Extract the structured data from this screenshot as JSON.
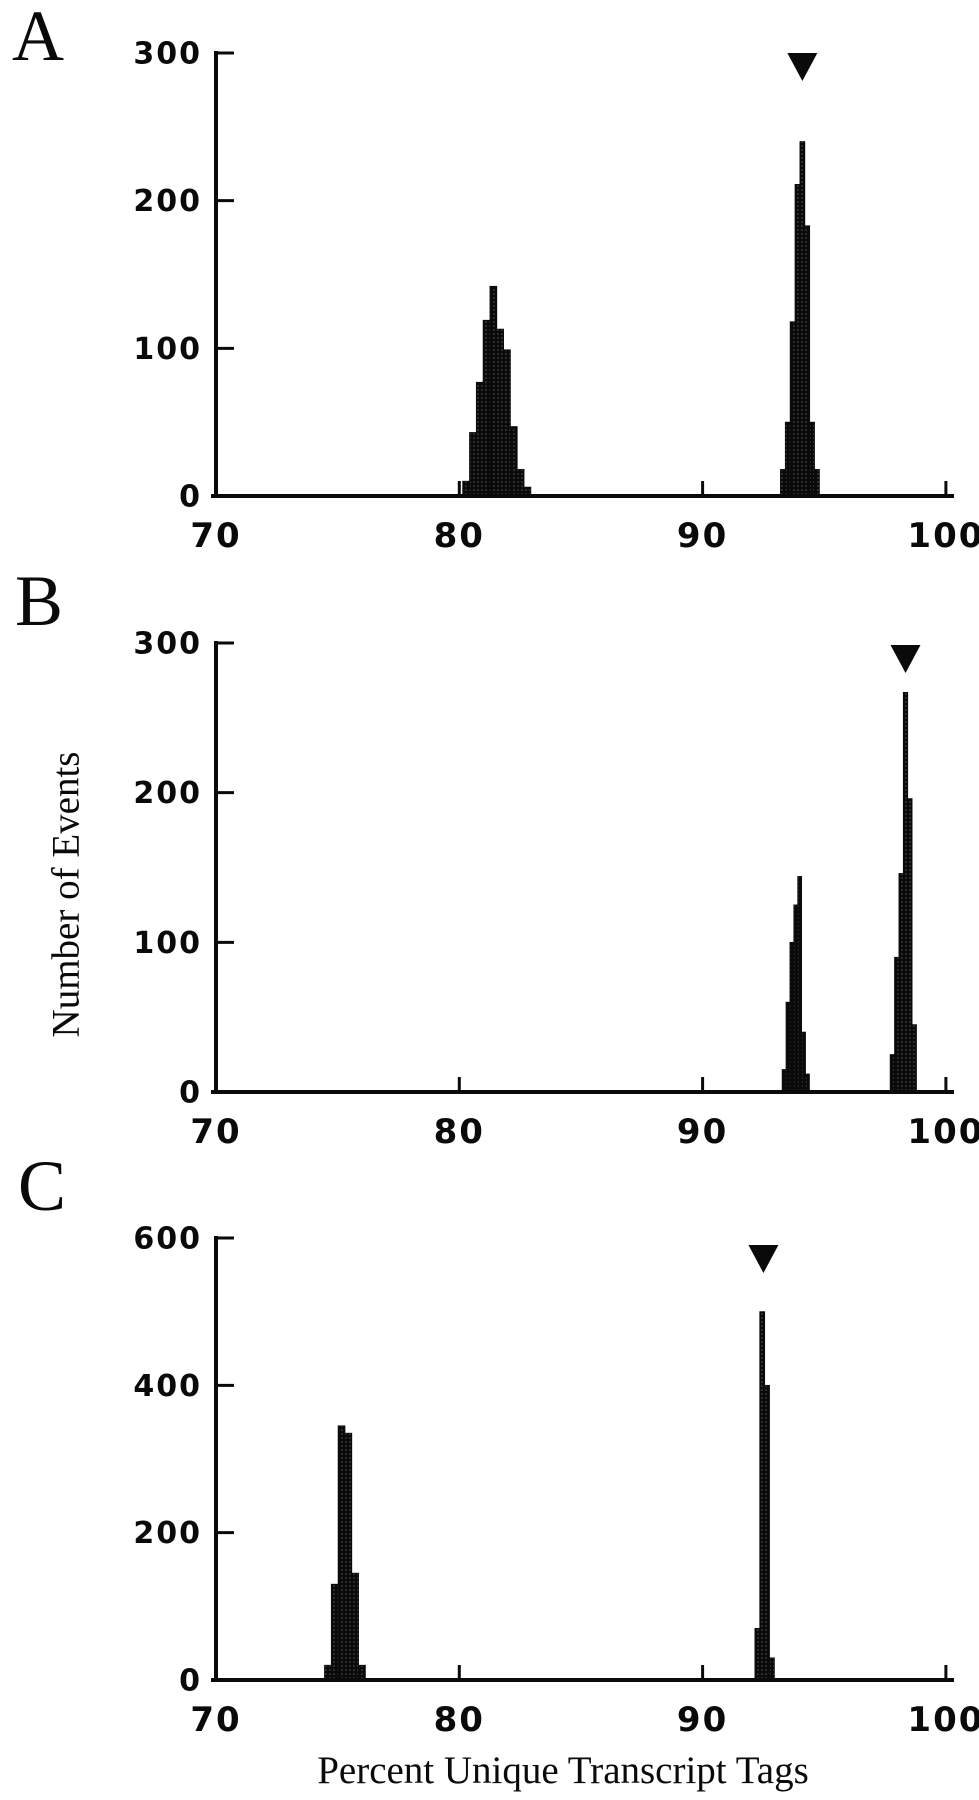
{
  "figure": {
    "xlabel": "Percent Unique Transcript Tags",
    "ylabel": "Number of Events",
    "marker_glyph": "▼",
    "colors": {
      "ink": "#0a0a0a",
      "background": "#ffffff"
    }
  },
  "chart_data": {
    "type": "bar",
    "subtype": "histogram, 3 stacked panels sharing x scale",
    "xlabel": "Percent Unique Transcript Tags",
    "ylabel": "Number of Events",
    "x_range": [
      70,
      100
    ],
    "x_ticks": [
      70,
      80,
      90,
      100
    ],
    "grid": false,
    "legend": "none",
    "bars_format": "[x_center_percent, height_events, bin_width_percent]",
    "panels": [
      {
        "label": "A",
        "ylim": [
          0,
          300
        ],
        "yticks": [
          300,
          200,
          100,
          0
        ],
        "marker_x": 94.1,
        "peak_summary": [
          {
            "center_x": 81.4,
            "max_height": 142
          },
          {
            "center_x": 94.1,
            "max_height": 240
          }
        ],
        "bars": [
          [
            80.28,
            10,
            0.28
          ],
          [
            80.56,
            43,
            0.28
          ],
          [
            80.84,
            77,
            0.28
          ],
          [
            81.12,
            119,
            0.28
          ],
          [
            81.4,
            142,
            0.28
          ],
          [
            81.68,
            113,
            0.28
          ],
          [
            81.96,
            99,
            0.28
          ],
          [
            82.24,
            47,
            0.28
          ],
          [
            82.52,
            18,
            0.28
          ],
          [
            82.8,
            6,
            0.28
          ],
          [
            93.3,
            18,
            0.2
          ],
          [
            93.5,
            50,
            0.2
          ],
          [
            93.7,
            118,
            0.2
          ],
          [
            93.9,
            211,
            0.2
          ],
          [
            94.1,
            240,
            0.2
          ],
          [
            94.3,
            183,
            0.2
          ],
          [
            94.5,
            50,
            0.2
          ],
          [
            94.7,
            18,
            0.2
          ]
        ]
      },
      {
        "label": "B",
        "ylim": [
          0,
          300
        ],
        "yticks": [
          300,
          200,
          100,
          0
        ],
        "marker_x": 98.34,
        "peak_summary": [
          {
            "center_x": 94.0,
            "max_height": 144
          },
          {
            "center_x": 98.3,
            "max_height": 267
          }
        ],
        "bars": [
          [
            93.35,
            15,
            0.16
          ],
          [
            93.51,
            60,
            0.16
          ],
          [
            93.67,
            100,
            0.16
          ],
          [
            93.83,
            125,
            0.16
          ],
          [
            93.99,
            144,
            0.16
          ],
          [
            94.15,
            40,
            0.16
          ],
          [
            94.31,
            12,
            0.16
          ],
          [
            97.8,
            25,
            0.18
          ],
          [
            97.98,
            90,
            0.18
          ],
          [
            98.16,
            146,
            0.18
          ],
          [
            98.34,
            267,
            0.18
          ],
          [
            98.52,
            196,
            0.18
          ],
          [
            98.7,
            45,
            0.18
          ]
        ]
      },
      {
        "label": "C",
        "ylim": [
          0,
          600
        ],
        "yticks": [
          600,
          400,
          200,
          0
        ],
        "marker_x": 92.5,
        "peak_summary": [
          {
            "center_x": 75.4,
            "max_height": 345
          },
          {
            "center_x": 92.5,
            "max_height": 500
          }
        ],
        "bars": [
          [
            74.6,
            20,
            0.28
          ],
          [
            74.88,
            130,
            0.28
          ],
          [
            75.16,
            345,
            0.28
          ],
          [
            75.44,
            335,
            0.28
          ],
          [
            75.72,
            145,
            0.28
          ],
          [
            76.0,
            20,
            0.28
          ],
          [
            92.25,
            70,
            0.2
          ],
          [
            92.45,
            500,
            0.2
          ],
          [
            92.65,
            400,
            0.2
          ],
          [
            92.85,
            30,
            0.2
          ]
        ]
      }
    ]
  }
}
